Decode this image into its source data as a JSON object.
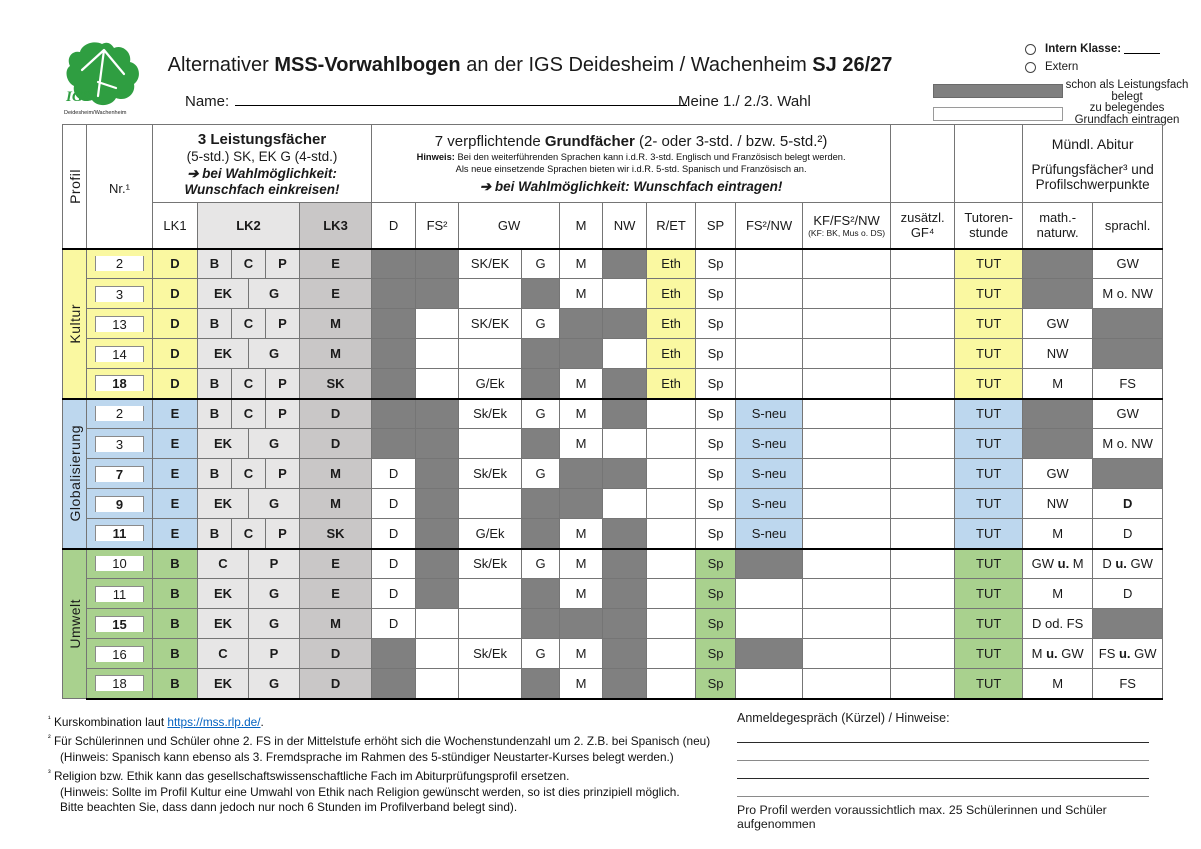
{
  "colors": {
    "kultur": "#FAF8A1",
    "glob": "#BDD7EE",
    "umwelt": "#A9D18E",
    "belegt": "#808080",
    "lk2": "#E7E6E6",
    "lk3": "#C9C7C7"
  },
  "header": {
    "title_pre": "Alternativer ",
    "title_bold1": "MSS-Vorwahlbogen",
    "title_mid": " an der IGS Deidesheim / Wachenheim ",
    "title_bold2": "SJ 26/27",
    "name_label": "Name:",
    "wahl_label": "Meine 1./ 2./3. Wahl"
  },
  "logo": {
    "org": "IGS",
    "sub": "Deidesheim/Wachenheim"
  },
  "legend": {
    "intern_label": "Intern Klasse:",
    "extern_label": "Extern",
    "gray_label": "schon als Leistungsfach belegt",
    "white_label": "zu belegendes Grundfach eintragen"
  },
  "table": {
    "corner_label": "Profil",
    "nr_label": "Nr.¹",
    "lf_header": {
      "line1": "3 Leistungsfächer",
      "line2": "(5-std.) SK, EK G (4-std.)",
      "line3": "➔ bei Wahlmöglichkeit:",
      "line4": "Wunschfach einkreisen!"
    },
    "gf_header": {
      "line1_pre": "7 verpflichtende ",
      "line1_bold": "Grundfächer",
      "line1_post": " (2- oder 3-std. / bzw. 5-std.²)",
      "hint1_bold": "Hinweis:",
      "hint1": " Bei den weiterführenden Sprachen kann i.d.R.  3-std. Englisch und Französisch belegt werden.",
      "hint2": "Als neue einsetzende Sprachen bieten wir i.d.R. 5-std. Spanisch und Französisch an.",
      "arrow": "➔ bei Wahlmöglichkeit: Wunschfach eintragen!"
    },
    "abitur_header": {
      "line1": "Mündl. Abitur",
      "line2": "Prüfungsfächer³ und",
      "line3": "Profilschwerpunkte"
    },
    "col_headers": {
      "lk1": "LK1",
      "lk2": "LK2",
      "lk3": "LK3",
      "d": "D",
      "fs2": "FS²",
      "gw": "GW",
      "m": "M",
      "nw": "NW",
      "ret": "R/ET",
      "sp": "SP",
      "fs2nw": "FS²/NW",
      "kf": "KF/FS²/NW",
      "kf_sub": "(KF: BK, Mus o. DS)",
      "zgf": "zusätzl. GF⁴",
      "tut1": "Tutoren-",
      "tut2": "stunde",
      "math1": "math.-",
      "math2": "naturw.",
      "sprach": "sprachl."
    },
    "cell_keys": [
      "d",
      "fs2",
      "gwA",
      "gwB",
      "m",
      "nw",
      "ret",
      "sp",
      "fs2nw",
      "kf",
      "zgf",
      "tut",
      "math",
      "sprach"
    ],
    "profiles": [
      {
        "id": "kultur",
        "label": "Kultur",
        "rows": [
          {
            "nr": "2",
            "nb": false,
            "lk1": "D",
            "lk2": [
              [
                "B",
                2
              ],
              [
                "C",
                2
              ],
              [
                "P",
                2
              ]
            ],
            "lk3": "E",
            "c": [
              "*",
              "*",
              "SK/EK",
              "G",
              "M",
              "*",
              "Eth",
              "Sp",
              "",
              "",
              "",
              "TUT",
              "*",
              "GW"
            ]
          },
          {
            "nr": "3",
            "nb": false,
            "lk1": "D",
            "lk2": [
              [
                "EK",
                3
              ],
              [
                "G",
                3
              ]
            ],
            "lk3": "E",
            "c": [
              "*",
              "*",
              "",
              "*",
              "M",
              "",
              "Eth",
              "Sp",
              "",
              "",
              "",
              "TUT",
              "*",
              "M o. NW"
            ]
          },
          {
            "nr": "13",
            "nb": false,
            "lk1": "D",
            "lk2": [
              [
                "B",
                2
              ],
              [
                "C",
                2
              ],
              [
                "P",
                2
              ]
            ],
            "lk3": "M",
            "c": [
              "*",
              "",
              "SK/EK",
              "G",
              "*",
              "*",
              "Eth",
              "Sp",
              "",
              "",
              "",
              "TUT",
              "GW",
              "*"
            ]
          },
          {
            "nr": "14",
            "nb": false,
            "lk1": "D",
            "lk2": [
              [
                "EK",
                3
              ],
              [
                "G",
                3
              ]
            ],
            "lk3": "M",
            "c": [
              "*",
              "",
              "",
              "*",
              "*",
              "",
              "Eth",
              "Sp",
              "",
              "",
              "",
              "TUT",
              "NW",
              "*"
            ]
          },
          {
            "nr": "18",
            "nb": true,
            "lk1": "D",
            "lk2": [
              [
                "B",
                2
              ],
              [
                "C",
                2
              ],
              [
                "P",
                2
              ]
            ],
            "lk3": "SK",
            "c": [
              "*",
              "",
              "G/Ek",
              "*",
              "M",
              "*",
              "Eth",
              "Sp",
              "",
              "",
              "",
              "TUT",
              "M",
              "FS"
            ]
          }
        ]
      },
      {
        "id": "glob",
        "label": "Globalisierung",
        "rows": [
          {
            "nr": "2",
            "nb": false,
            "lk1": "E",
            "lk2": [
              [
                "B",
                2
              ],
              [
                "C",
                2
              ],
              [
                "P",
                2
              ]
            ],
            "lk3": "D",
            "c": [
              "*",
              "*",
              "Sk/Ek",
              "G",
              "M",
              "*",
              "",
              "Sp",
              "S-neu",
              "",
              "",
              "TUT",
              "*",
              "GW"
            ]
          },
          {
            "nr": "3",
            "nb": false,
            "lk1": "E",
            "lk2": [
              [
                "EK",
                3
              ],
              [
                "G",
                3
              ]
            ],
            "lk3": "D",
            "c": [
              "*",
              "*",
              "",
              "*",
              "M",
              "",
              "",
              "Sp",
              "S-neu",
              "",
              "",
              "TUT",
              "*",
              "M o. NW"
            ]
          },
          {
            "nr": "7",
            "nb": true,
            "lk1": "E",
            "lk2": [
              [
                "B",
                2
              ],
              [
                "C",
                2
              ],
              [
                "P",
                2
              ]
            ],
            "lk3": "M",
            "c": [
              "D",
              "*",
              "Sk/Ek",
              "G",
              "*",
              "*",
              "",
              "Sp",
              "S-neu",
              "",
              "",
              "TUT",
              "GW",
              "*"
            ]
          },
          {
            "nr": "9",
            "nb": true,
            "lk1": "E",
            "lk2": [
              [
                "EK",
                3
              ],
              [
                "G",
                3
              ]
            ],
            "lk3": "M",
            "sb": true,
            "c": [
              "D",
              "*",
              "",
              "*",
              "*",
              "",
              "",
              "Sp",
              "S-neu",
              "",
              "",
              "TUT",
              "NW",
              "D"
            ]
          },
          {
            "nr": "11",
            "nb": true,
            "lk1": "E",
            "lk2": [
              [
                "B",
                2
              ],
              [
                "C",
                2
              ],
              [
                "P",
                2
              ]
            ],
            "lk3": "SK",
            "c": [
              "D",
              "*",
              "G/Ek",
              "*",
              "M",
              "*",
              "",
              "Sp",
              "S-neu",
              "",
              "",
              "TUT",
              "M",
              "D"
            ]
          }
        ]
      },
      {
        "id": "umwelt",
        "label": "Umwelt",
        "rows": [
          {
            "nr": "10",
            "nb": false,
            "lk1": "B",
            "lk2": [
              [
                "C",
                3
              ],
              [
                "P",
                3
              ]
            ],
            "lk3": "E",
            "c": [
              "D",
              "*",
              "Sk/Ek",
              "G",
              "M",
              "*",
              "",
              "Sp",
              "*",
              "",
              "",
              "TUT",
              "GW u. M",
              "D u. GW"
            ]
          },
          {
            "nr": "11",
            "nb": false,
            "lk1": "B",
            "lk2": [
              [
                "EK",
                3
              ],
              [
                "G",
                3
              ]
            ],
            "lk3": "E",
            "c": [
              "D",
              "*",
              "",
              "*",
              "M",
              "*",
              "",
              "Sp",
              "",
              "",
              "",
              "TUT",
              "M",
              "D"
            ]
          },
          {
            "nr": "15",
            "nb": true,
            "lk1": "B",
            "lk2": [
              [
                "EK",
                3
              ],
              [
                "G",
                3
              ]
            ],
            "lk3": "M",
            "c": [
              "D",
              "",
              "",
              "*",
              "*",
              "*",
              "",
              "Sp",
              "",
              "",
              "",
              "TUT",
              "D od. FS",
              "*"
            ]
          },
          {
            "nr": "16",
            "nb": false,
            "lk1": "B",
            "lk2": [
              [
                "C",
                3
              ],
              [
                "P",
                3
              ]
            ],
            "lk3": "D",
            "c": [
              "*",
              "",
              "Sk/Ek",
              "G",
              "M",
              "*",
              "",
              "Sp",
              "*",
              "",
              "",
              "TUT",
              "M u. GW",
              "FS u. GW"
            ]
          },
          {
            "nr": "18",
            "nb": false,
            "lk1": "B",
            "lk2": [
              [
                "EK",
                3
              ],
              [
                "G",
                3
              ]
            ],
            "lk3": "D",
            "c": [
              "*",
              "",
              "",
              "*",
              "M",
              "*",
              "",
              "Sp",
              "",
              "",
              "",
              "TUT",
              "M",
              "FS"
            ]
          }
        ]
      }
    ]
  },
  "footnotes": [
    {
      "marker": "¹",
      "pre": "Kurskombination laut ",
      "link": "https://mss.rlp.de/",
      "post": "."
    },
    {
      "marker": "²",
      "text": "Für Schülerinnen und Schüler ohne 2. FS in der Mittelstufe erhöht sich die Wochenstundenzahl um 2. Z.B. bei Spanisch (neu)"
    },
    {
      "marker": "",
      "text": "(Hinweis: Spanisch kann ebenso als 3. Fremdsprache im Rahmen des 5-stündiger Neustarter-Kurses belegt werden.)"
    },
    {
      "marker": "³",
      "text": "Religion bzw. Ethik kann das gesellschaftswissenschaftliche Fach im Abiturprüfungsprofil ersetzen."
    },
    {
      "marker": "",
      "text": "(Hinweis: Sollte im Profil Kultur eine Umwahl von Ethik nach Religion gewünscht werden, so ist dies prinzipiell möglich."
    },
    {
      "marker": "",
      "text": "Bitte beachten Sie, dass dann jedoch nur noch 6 Stunden im Profilverband belegt sind)."
    }
  ],
  "notes": {
    "title": "Anmeldegespräch (Kürzel) / Hinweise:",
    "bottom": "Pro Profil werden voraussichtlich max. 25 Schülerinnen und Schüler aufgenommen"
  }
}
